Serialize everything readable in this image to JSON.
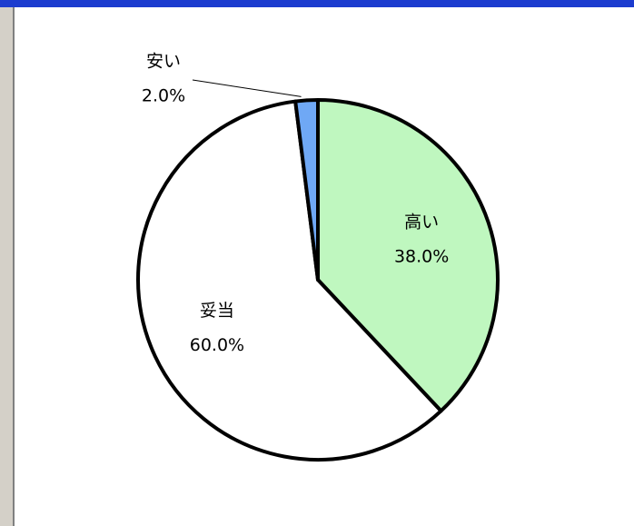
{
  "chart_data": {
    "type": "pie",
    "categories": [
      "高い",
      "妥当",
      "安い"
    ],
    "values": [
      38,
      60,
      2
    ],
    "value_labels": [
      "38.0%",
      "60.0%",
      "2.0%"
    ],
    "colors": [
      "#bff7bf",
      "#ffffff",
      "#6fa8f5"
    ]
  }
}
